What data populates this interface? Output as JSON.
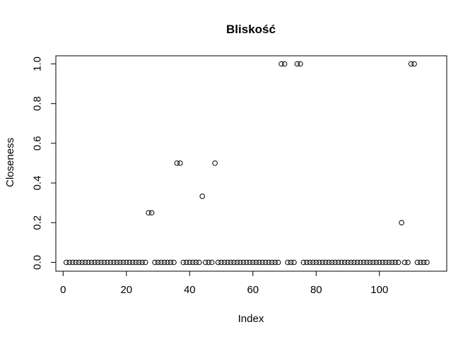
{
  "chart_data": {
    "type": "scatter",
    "title": "Bliskość",
    "xlabel": "Index",
    "ylabel": "Closeness",
    "xlim": [
      0,
      116
    ],
    "ylim": [
      0,
      1
    ],
    "xticks": [
      "0",
      "20",
      "40",
      "60",
      "80",
      "100"
    ],
    "yticks": [
      "0.0",
      "0.2",
      "0.4",
      "0.6",
      "0.8",
      "1.0"
    ],
    "grid": false,
    "marker": "open-circle",
    "x": [
      1,
      2,
      3,
      4,
      5,
      6,
      7,
      8,
      9,
      10,
      11,
      12,
      13,
      14,
      15,
      16,
      17,
      18,
      19,
      20,
      21,
      22,
      23,
      24,
      25,
      26,
      27,
      28,
      29,
      30,
      31,
      32,
      33,
      34,
      35,
      36,
      37,
      38,
      39,
      40,
      41,
      42,
      43,
      44,
      45,
      46,
      47,
      48,
      49,
      50,
      51,
      52,
      53,
      54,
      55,
      56,
      57,
      58,
      59,
      60,
      61,
      62,
      63,
      64,
      65,
      66,
      67,
      68,
      69,
      70,
      71,
      72,
      73,
      74,
      75,
      76,
      77,
      78,
      79,
      80,
      81,
      82,
      83,
      84,
      85,
      86,
      87,
      88,
      89,
      90,
      91,
      92,
      93,
      94,
      95,
      96,
      97,
      98,
      99,
      100,
      101,
      102,
      103,
      104,
      105,
      106,
      107,
      108,
      109,
      110,
      111,
      112,
      113,
      114,
      115
    ],
    "y": [
      0,
      0,
      0,
      0,
      0,
      0,
      0,
      0,
      0,
      0,
      0,
      0,
      0,
      0,
      0,
      0,
      0,
      0,
      0,
      0,
      0,
      0,
      0,
      0,
      0,
      0,
      0.25,
      0.25,
      0,
      0,
      0,
      0,
      0,
      0,
      0,
      0.5,
      0.5,
      0,
      0,
      0,
      0,
      0,
      0,
      0.333,
      0,
      0,
      0,
      0.5,
      0,
      0,
      0,
      0,
      0,
      0,
      0,
      0,
      0,
      0,
      0,
      0,
      0,
      0,
      0,
      0,
      0,
      0,
      0,
      0,
      1,
      1,
      0,
      0,
      0,
      1,
      1,
      0,
      0,
      0,
      0,
      0,
      0,
      0,
      0,
      0,
      0,
      0,
      0,
      0,
      0,
      0,
      0,
      0,
      0,
      0,
      0,
      0,
      0,
      0,
      0,
      0,
      0,
      0,
      0,
      0,
      0,
      0,
      0.2,
      0,
      0,
      1,
      1,
      0,
      0,
      0,
      0
    ]
  }
}
